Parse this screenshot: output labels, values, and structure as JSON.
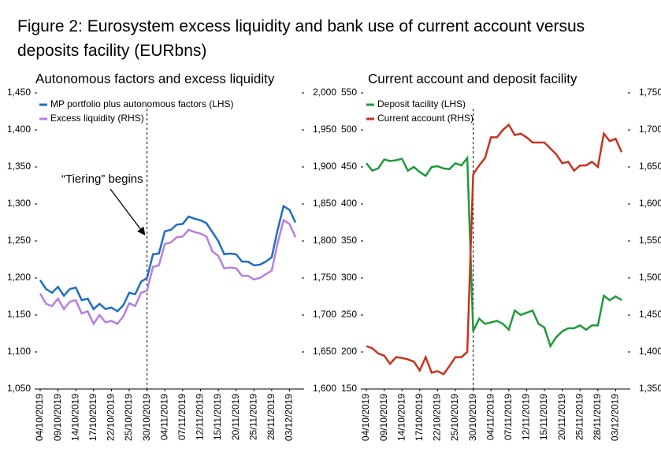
{
  "title": "Figure 2: Eurosystem excess liquidity and bank use of current account versus deposits facility (EURbns)",
  "chart_data": [
    {
      "type": "line",
      "title": "Autonomous factors and excess liquidity",
      "annotation": "“Tiering” begins",
      "categories": [
        "04/10/2019",
        null,
        null,
        "09/10/2019",
        null,
        null,
        "14/10/2019",
        null,
        null,
        "17/10/2019",
        null,
        null,
        "22/10/2019",
        null,
        null,
        "25/10/2019",
        null,
        null,
        "30/10/2019",
        null,
        null,
        "04/11/2019",
        null,
        null,
        "07/11/2019",
        null,
        null,
        "12/11/2019",
        null,
        null,
        "15/11/2019",
        null,
        null,
        "20/11/2019",
        null,
        null,
        "25/11/2019",
        null,
        null,
        "28/11/2019",
        null,
        null,
        "03/12/2019",
        null
      ],
      "ylim": [
        1050,
        1450
      ],
      "yticks": [
        {
          "value": 1050,
          "label": "1,050"
        },
        {
          "value": 1100,
          "label": "1,100"
        },
        {
          "value": 1150,
          "label": "1,150"
        },
        {
          "value": 1200,
          "label": "1,200"
        },
        {
          "value": 1250,
          "label": "1,250"
        },
        {
          "value": 1300,
          "label": "1,300"
        },
        {
          "value": 1350,
          "label": "1,350"
        },
        {
          "value": 1400,
          "label": "1,400"
        },
        {
          "value": 1450,
          "label": "1,450"
        }
      ],
      "y2lim": [
        1600,
        2000
      ],
      "y2ticks": [
        {
          "value": 1600,
          "label": "1,600"
        },
        {
          "value": 1650,
          "label": "1,650"
        },
        {
          "value": 1700,
          "label": "1,700"
        },
        {
          "value": 1750,
          "label": "1,750"
        },
        {
          "value": 1800,
          "label": "1,800"
        },
        {
          "value": 1850,
          "label": "1,850"
        },
        {
          "value": 1900,
          "label": "1,900"
        },
        {
          "value": 1950,
          "label": "1,950"
        },
        {
          "value": 2000,
          "label": "2,000"
        }
      ],
      "legend": "upper left",
      "series": [
        {
          "name": "MP portfolio plus autonomous factors (LHS)",
          "color": "#1f6dc4",
          "values": [
            1197,
            1185,
            1180,
            1188,
            1176,
            1185,
            1187,
            1170,
            1172,
            1158,
            1165,
            1158,
            1160,
            1155,
            1163,
            1180,
            1178,
            1195,
            1200,
            1232,
            1233,
            1263,
            1265,
            1272,
            1273,
            1283,
            1280,
            1278,
            1274,
            1262,
            1250,
            1232,
            1233,
            1232,
            1222,
            1222,
            1217,
            1218,
            1222,
            1228,
            1265,
            1297,
            1292,
            1275
          ]
        },
        {
          "name": "Excess liquidity (RHS)",
          "color": "#b67fe0",
          "axis": "y2",
          "values": [
            1729,
            1715,
            1712,
            1722,
            1708,
            1718,
            1720,
            1702,
            1705,
            1688,
            1700,
            1690,
            1692,
            1688,
            1698,
            1716,
            1712,
            1730,
            1733,
            1765,
            1767,
            1796,
            1798,
            1805,
            1806,
            1815,
            1812,
            1810,
            1806,
            1786,
            1780,
            1763,
            1764,
            1763,
            1753,
            1753,
            1748,
            1750,
            1755,
            1760,
            1797,
            1828,
            1823,
            1805
          ]
        }
      ]
    },
    {
      "type": "line",
      "title": "Current account and deposit facility",
      "categories": [
        "04/10/2019",
        null,
        null,
        "09/10/2019",
        null,
        null,
        "14/10/2019",
        null,
        null,
        "17/10/2019",
        null,
        null,
        "22/10/2019",
        null,
        null,
        "25/10/2019",
        null,
        null,
        "30/10/2019",
        null,
        null,
        "04/11/2019",
        null,
        null,
        "07/11/2019",
        null,
        null,
        "12/11/2019",
        null,
        null,
        "15/11/2019",
        null,
        null,
        "20/11/2019",
        null,
        null,
        "25/11/2019",
        null,
        null,
        "28/11/2019",
        null,
        null,
        "03/12/2019",
        null
      ],
      "ylim": [
        150,
        550
      ],
      "yticks": [
        150,
        200,
        250,
        300,
        350,
        400,
        450,
        500,
        550
      ],
      "y2lim": [
        1350,
        1750
      ],
      "y2ticks": [
        {
          "value": 1350,
          "label": "1,350"
        },
        {
          "value": 1400,
          "label": "1,400"
        },
        {
          "value": 1450,
          "label": "1,450"
        },
        {
          "value": 1500,
          "label": "1,500"
        },
        {
          "value": 1550,
          "label": "1,550"
        },
        {
          "value": 1600,
          "label": "1,600"
        },
        {
          "value": 1650,
          "label": "1,650"
        },
        {
          "value": 1700,
          "label": "1,700"
        },
        {
          "value": 1750,
          "label": "1,750"
        }
      ],
      "legend": "upper left",
      "series": [
        {
          "name": "Deposit facility (LHS)",
          "color": "#1e9a3c",
          "values": [
            455,
            445,
            448,
            460,
            458,
            459,
            461,
            445,
            450,
            443,
            438,
            450,
            451,
            448,
            447,
            455,
            452,
            462,
            228,
            245,
            238,
            240,
            242,
            238,
            230,
            256,
            250,
            253,
            256,
            238,
            233,
            208,
            220,
            228,
            232,
            232,
            236,
            230,
            236,
            236,
            276,
            270,
            275,
            270
          ]
        },
        {
          "name": "Current account (RHS)",
          "color": "#c8321e",
          "axis": "y2",
          "values": [
            1408,
            1405,
            1398,
            1395,
            1384,
            1393,
            1392,
            1390,
            1387,
            1375,
            1393,
            1372,
            1374,
            1370,
            1381,
            1393,
            1393,
            1400,
            1640,
            1652,
            1662,
            1690,
            1690,
            1700,
            1707,
            1693,
            1695,
            1690,
            1683,
            1683,
            1683,
            1675,
            1667,
            1655,
            1657,
            1645,
            1652,
            1652,
            1657,
            1650,
            1695,
            1685,
            1688,
            1670
          ]
        }
      ]
    }
  ]
}
